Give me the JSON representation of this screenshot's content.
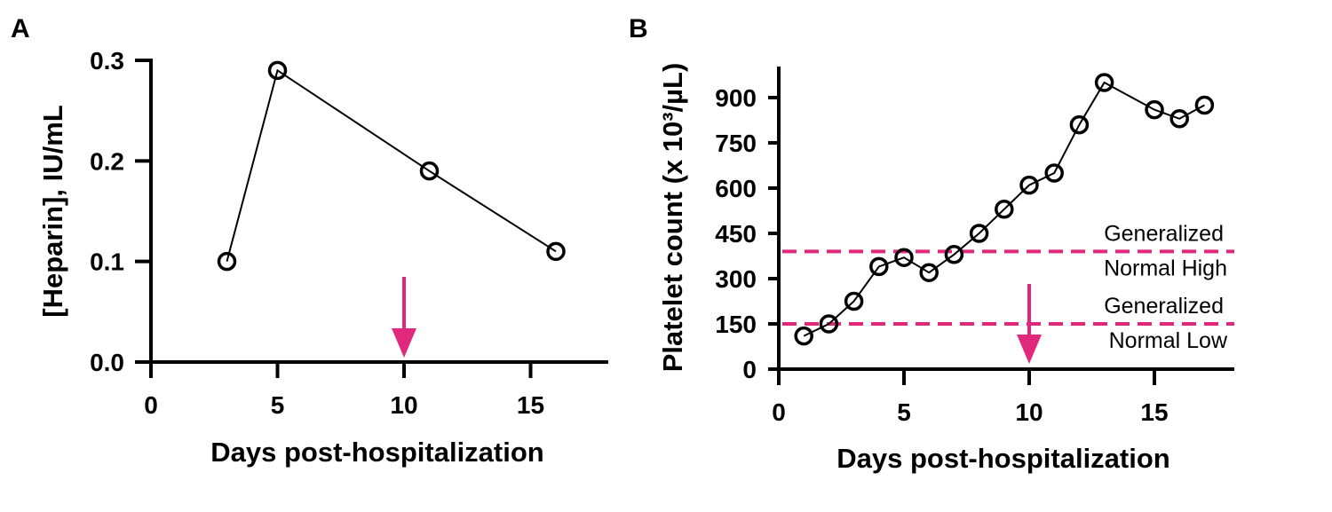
{
  "chart_data": [
    {
      "panel": "A",
      "type": "line",
      "title": "",
      "xlabel": "Days post-hospitalization",
      "ylabel": "[Heparin], IU/mL",
      "xlim": [
        0,
        18
      ],
      "ylim": [
        0,
        0.3
      ],
      "xticks": [
        0,
        5,
        10,
        15
      ],
      "xtick_labels": [
        "0",
        "5",
        "10",
        "15"
      ],
      "yticks": [
        0,
        0.1,
        0.2,
        0.3
      ],
      "ytick_labels": [
        "0.0",
        "0.1",
        "0.2",
        "0.3"
      ],
      "grid": false,
      "series": [
        {
          "name": "Heparin",
          "x": [
            3,
            5,
            11,
            16
          ],
          "y": [
            0.1,
            0.29,
            0.19,
            0.11
          ],
          "marker": "open-circle",
          "color": "#000000"
        }
      ],
      "annotations": [
        {
          "type": "arrow-down",
          "x": 10,
          "color": "#E0287D"
        }
      ]
    },
    {
      "panel": "B",
      "type": "line",
      "title": "",
      "xlabel": "Days post-hospitalization",
      "ylabel": "Platelet count (x 10³/µL)",
      "xlim": [
        0,
        18
      ],
      "ylim": [
        0,
        1000
      ],
      "xticks": [
        0,
        5,
        10,
        15
      ],
      "xtick_labels": [
        "0",
        "5",
        "10",
        "15"
      ],
      "yticks": [
        0,
        150,
        300,
        450,
        600,
        750,
        900
      ],
      "ytick_labels": [
        "0",
        "150",
        "300",
        "450",
        "600",
        "750",
        "900"
      ],
      "grid": false,
      "series": [
        {
          "name": "Platelet count",
          "x": [
            1,
            2,
            3,
            4,
            5,
            6,
            7,
            8,
            9,
            10,
            11,
            12,
            13,
            15,
            16,
            17
          ],
          "y": [
            110,
            150,
            225,
            340,
            370,
            320,
            380,
            450,
            530,
            610,
            650,
            810,
            950,
            860,
            830,
            875
          ],
          "marker": "open-circle",
          "color": "#000000"
        }
      ],
      "reference_lines": [
        {
          "y": 390,
          "label_top": "Generalized",
          "label_bottom": "Normal High",
          "style": "dashed",
          "color": "#E0287D"
        },
        {
          "y": 150,
          "label_top": "Generalized",
          "label_bottom": "Normal Low",
          "style": "dashed",
          "color": "#E0287D"
        }
      ],
      "annotations": [
        {
          "type": "arrow-down",
          "x": 10,
          "color": "#E0287D"
        }
      ]
    }
  ]
}
